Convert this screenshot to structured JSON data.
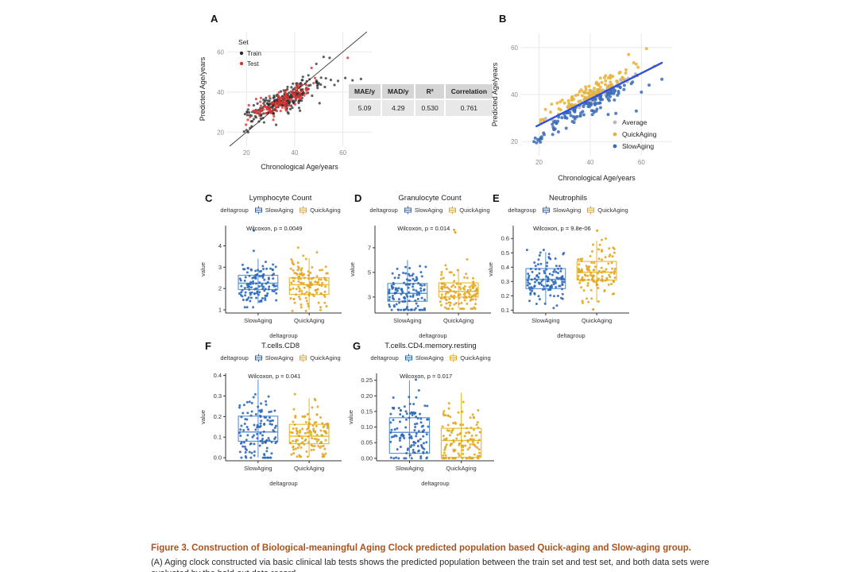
{
  "caption": {
    "title": "Figure 3. Construction of Biological-meaningful Aging Clock predicted population based Quick-aging and Slow-aging group.",
    "title_color": "#ad521c",
    "body_partial": "(A) Aging clock constructed via basic clinical lab tests shows the predicted population between the train set and test set, and both data sets were evaluated by the hold-out data record."
  },
  "metrics_table": {
    "headers": [
      "MAE/y",
      "MAD/y",
      "R²",
      "Correlation"
    ],
    "values": [
      "5.09",
      "4.29",
      "0.530",
      "0.761"
    ]
  },
  "chart_data": [
    {
      "id": "A",
      "panel_letter": "A",
      "type": "scatter",
      "xlabel": "Chronological Age/years",
      "ylabel": "Predicted Age/years",
      "xlim": [
        12,
        72
      ],
      "ylim": [
        13,
        70
      ],
      "xticks": [
        20,
        40,
        60
      ],
      "yticks": [
        20,
        40,
        60
      ],
      "grid": true,
      "identity_line": true,
      "legend": {
        "title": "Set",
        "pos": "top-left"
      },
      "size": [
        228,
        182
      ],
      "margins": {
        "l": 38,
        "r": 8,
        "t": 6,
        "b": 32
      },
      "series": [
        {
          "name": "Train",
          "color": "#2b2b2b",
          "opacity": 0.75,
          "r": 1.6,
          "n": 250,
          "seed": 11,
          "xdist": [
            18,
            54
          ],
          "trend": {
            "slope": 0.55,
            "intercept": 16.5
          },
          "noise": {
            "kind": "normal",
            "sd": 3.0
          },
          "y_clip": [
            19,
            58
          ],
          "extra": [
            [
              55,
              46
            ],
            [
              58,
              45.5
            ],
            [
              61,
              47
            ],
            [
              64,
              45.8
            ],
            [
              67.5,
              46.5
            ],
            [
              56.5,
              43.5
            ],
            [
              52,
              57.5
            ],
            [
              54.5,
              57
            ],
            [
              49,
              54
            ],
            [
              20,
              21
            ],
            [
              19,
              20.3
            ],
            [
              21.5,
              22
            ]
          ]
        },
        {
          "name": "Test",
          "color": "#e03231",
          "opacity": 0.8,
          "r": 1.6,
          "n": 125,
          "seed": 22,
          "xdist": [
            19,
            50
          ],
          "trend": {
            "slope": 0.52,
            "intercept": 17.5
          },
          "noise": {
            "kind": "normal",
            "sd": 3.0
          },
          "y_clip": [
            20,
            56
          ],
          "extra": [
            [
              62,
              57
            ],
            [
              47,
              52
            ],
            [
              24,
              36.5
            ],
            [
              26,
              37
            ]
          ]
        }
      ]
    },
    {
      "id": "B",
      "panel_letter": "B",
      "type": "scatter",
      "xlabel": "Chronological Age/years",
      "ylabel": "Predicted Age/years",
      "xlim": [
        13,
        72
      ],
      "ylim": [
        14,
        66
      ],
      "xticks": [
        20,
        40,
        60
      ],
      "yticks": [
        20,
        40,
        60
      ],
      "grid": true,
      "regression": {
        "x1": 19,
        "y1": 26.5,
        "x2": 68,
        "y2": 53.5,
        "color": "#2f4fe0",
        "width": 2.4
      },
      "legend": {
        "title": "",
        "pos": "bottom-right"
      },
      "size": [
        242,
        196
      ],
      "margins": {
        "l": 40,
        "r": 12,
        "t": 8,
        "b": 34
      },
      "series": [
        {
          "name": "Average",
          "color": "#b9b9b9",
          "opacity": 0.9,
          "r": 2.0,
          "n": 65,
          "seed": 33,
          "xdist": [
            19,
            62
          ],
          "trend": {
            "slope": 0.55,
            "intercept": 16.1
          },
          "noise": {
            "kind": "normal",
            "sd": 0.9
          },
          "y_clip": [
            18,
            52
          ],
          "extra": []
        },
        {
          "name": "QuickAging",
          "color": "#e5b33c",
          "opacity": 0.85,
          "r": 2.0,
          "n": 115,
          "seed": 44,
          "xdist": [
            19,
            60
          ],
          "trend": {
            "slope": 0.55,
            "intercept": 16.1
          },
          "noise": {
            "kind": "pos",
            "min": 0.6,
            "max": 6.0,
            "pow": 1.7
          },
          "y_clip": [
            20,
            60
          ],
          "extra": [
            [
              55,
              57
            ],
            [
              62,
              59.5
            ],
            [
              57,
              53.5
            ],
            [
              65,
              52
            ],
            [
              54,
              50.5
            ],
            [
              46,
              48
            ],
            [
              44,
              47
            ]
          ]
        },
        {
          "name": "SlowAging",
          "color": "#3a6cb5",
          "opacity": 0.85,
          "r": 2.0,
          "n": 115,
          "seed": 55,
          "xdist": [
            18,
            62
          ],
          "trend": {
            "slope": 0.55,
            "intercept": 16.1
          },
          "noise": {
            "kind": "neg",
            "min": 0.6,
            "max": 7.5,
            "pow": 1.7
          },
          "y_clip": [
            18.5,
            50
          ],
          "extra": [
            [
              18,
              20
            ],
            [
              19,
              19.5
            ],
            [
              20,
              20.5
            ],
            [
              21,
              21.2
            ],
            [
              19.5,
              20.9
            ],
            [
              20.5,
              19.8
            ],
            [
              22,
              23
            ],
            [
              18.5,
              21.5
            ],
            [
              68,
              46.5
            ],
            [
              63,
              44
            ],
            [
              60,
              41
            ],
            [
              58,
              33
            ],
            [
              50,
              32
            ],
            [
              47,
              31.5
            ]
          ]
        }
      ]
    },
    {
      "id": "C",
      "panel_letter": "C",
      "type": "box",
      "title": "Lymphocyte Count",
      "p_label": "Wilcoxon, p = 0.0049",
      "legend_title": "deltagroup",
      "xlabel": "deltagroup",
      "ylabel": "value",
      "ylim": [
        0.85,
        4.95
      ],
      "yticks": [
        1,
        2,
        3,
        4
      ],
      "tick_format": 0,
      "size": [
        190,
        158
      ],
      "margins": {
        "l": 34,
        "r": 10,
        "t": 14,
        "b": 34
      },
      "groups": [
        {
          "name": "SlowAging",
          "point_color": "#2a66b8",
          "box_color": "#6297d3",
          "box": {
            "lo": 1.3,
            "q1": 1.95,
            "med": 2.25,
            "q3": 2.62,
            "hi": 3.4
          },
          "points": {
            "n": 120,
            "seed": 101,
            "sd": 0.55,
            "min": 1.12,
            "max": 4.05
          },
          "outliers": [
            4.72
          ]
        },
        {
          "name": "QuickAging",
          "point_color": "#e2a51f",
          "box_color": "#e8bc39",
          "box": {
            "lo": 1.0,
            "q1": 1.72,
            "med": 2.18,
            "q3": 2.5,
            "hi": 3.42
          },
          "points": {
            "n": 120,
            "seed": 102,
            "sd": 0.58,
            "min": 0.95,
            "max": 3.92
          },
          "outliers": []
        }
      ]
    },
    {
      "id": "D",
      "panel_letter": "D",
      "type": "box",
      "title": "Granulocyte Count",
      "p_label": "Wilcoxon, p = 0.014",
      "legend_title": "deltagroup",
      "xlabel": "deltagroup",
      "ylabel": "value",
      "ylim": [
        1.7,
        8.8
      ],
      "yticks": [
        3,
        5,
        7
      ],
      "tick_format": 0,
      "size": [
        190,
        158
      ],
      "margins": {
        "l": 34,
        "r": 10,
        "t": 14,
        "b": 34
      },
      "groups": [
        {
          "name": "SlowAging",
          "point_color": "#2a66b8",
          "box_color": "#6297d3",
          "box": {
            "lo": 2.0,
            "q1": 2.65,
            "med": 3.3,
            "q3": 4.1,
            "hi": 6.0
          },
          "points": {
            "n": 120,
            "seed": 103,
            "sd": 0.95,
            "min": 1.95,
            "max": 6.6
          },
          "outliers": []
        },
        {
          "name": "QuickAging",
          "point_color": "#e2a51f",
          "box_color": "#e8bc39",
          "box": {
            "lo": 2.1,
            "q1": 3.0,
            "med": 3.45,
            "q3": 4.15,
            "hi": 5.3
          },
          "points": {
            "n": 120,
            "seed": 104,
            "sd": 0.85,
            "min": 2.05,
            "max": 6.9
          },
          "outliers": [
            8.25,
            8.45
          ]
        }
      ]
    },
    {
      "id": "E",
      "panel_letter": "E",
      "type": "box",
      "title": "Neutrophils",
      "p_label": "Wilcoxon, p = 9.8e-06",
      "legend_title": "deltagroup",
      "xlabel": "deltagroup",
      "ylabel": "value",
      "ylim": [
        0.08,
        0.69
      ],
      "yticks": [
        0.1,
        0.2,
        0.3,
        0.4,
        0.5,
        0.6
      ],
      "tick_format": 1,
      "size": [
        190,
        158
      ],
      "margins": {
        "l": 34,
        "r": 10,
        "t": 14,
        "b": 34
      },
      "groups": [
        {
          "name": "SlowAging",
          "point_color": "#2a66b8",
          "box_color": "#6297d3",
          "box": {
            "lo": 0.135,
            "q1": 0.25,
            "med": 0.315,
            "q3": 0.39,
            "hi": 0.505
          },
          "points": {
            "n": 120,
            "seed": 105,
            "sd": 0.093,
            "min": 0.115,
            "max": 0.52
          },
          "outliers": []
        },
        {
          "name": "QuickAging",
          "point_color": "#e2a51f",
          "box_color": "#e8bc39",
          "box": {
            "lo": 0.155,
            "q1": 0.31,
            "med": 0.365,
            "q3": 0.44,
            "hi": 0.585
          },
          "points": {
            "n": 120,
            "seed": 106,
            "sd": 0.095,
            "min": 0.15,
            "max": 0.6
          },
          "outliers": [
            0.655,
            0.105
          ]
        }
      ]
    },
    {
      "id": "F",
      "panel_letter": "F",
      "type": "box",
      "title": "T.cells.CD8",
      "p_label": "Wilcoxon, p = 0.041",
      "legend_title": "deltagroup",
      "xlabel": "deltagroup",
      "ylabel": "value",
      "ylim": [
        -0.015,
        0.41
      ],
      "yticks": [
        0.0,
        0.1,
        0.2,
        0.3,
        0.4
      ],
      "tick_format": 1,
      "size": [
        190,
        158
      ],
      "margins": {
        "l": 34,
        "r": 10,
        "t": 14,
        "b": 34
      },
      "groups": [
        {
          "name": "SlowAging",
          "point_color": "#2a66b8",
          "box_color": "#6297d3",
          "box": {
            "lo": 0.0,
            "q1": 0.08,
            "med": 0.125,
            "q3": 0.202,
            "hi": 0.38
          },
          "points": {
            "n": 120,
            "seed": 107,
            "sd": 0.085,
            "min": 0.0,
            "max": 0.385
          },
          "outliers": []
        },
        {
          "name": "QuickAging",
          "point_color": "#e2a51f",
          "box_color": "#e8bc39",
          "box": {
            "lo": 0.005,
            "q1": 0.068,
            "med": 0.105,
            "q3": 0.162,
            "hi": 0.29
          },
          "points": {
            "n": 120,
            "seed": 108,
            "sd": 0.07,
            "min": 0.005,
            "max": 0.345
          },
          "outliers": []
        }
      ]
    },
    {
      "id": "G",
      "panel_letter": "G",
      "type": "box",
      "title": "T.cells.CD4.memory.resting",
      "p_label": "Wilcoxon, p = 0.017",
      "legend_title": "deltagroup",
      "xlabel": "deltagroup",
      "ylabel": "value",
      "ylim": [
        -0.008,
        0.272
      ],
      "yticks": [
        0.0,
        0.05,
        0.1,
        0.15,
        0.2,
        0.25
      ],
      "tick_format": 2,
      "size": [
        196,
        158
      ],
      "margins": {
        "l": 38,
        "r": 10,
        "t": 14,
        "b": 34
      },
      "groups": [
        {
          "name": "SlowAging",
          "point_color": "#2a66b8",
          "box_color": "#6297d3",
          "box": {
            "lo": 0.0,
            "q1": 0.016,
            "med": 0.083,
            "q3": 0.13,
            "hi": 0.25
          },
          "points": {
            "n": 120,
            "seed": 109,
            "sd": 0.068,
            "min": 0.0,
            "max": 0.252
          },
          "outliers": []
        },
        {
          "name": "QuickAging",
          "point_color": "#e2a51f",
          "box_color": "#e8bc39",
          "box": {
            "lo": 0.0,
            "q1": 0.003,
            "med": 0.057,
            "q3": 0.096,
            "hi": 0.21
          },
          "points": {
            "n": 120,
            "seed": 110,
            "sd": 0.055,
            "min": 0.0,
            "max": 0.215
          },
          "outliers": []
        }
      ]
    }
  ],
  "style": {
    "grid_color": "#e8e8e8",
    "scatter_tick_color": "#8c8c8c",
    "axis_color": "#333333",
    "identity_line_color": "#3a3a3a"
  }
}
